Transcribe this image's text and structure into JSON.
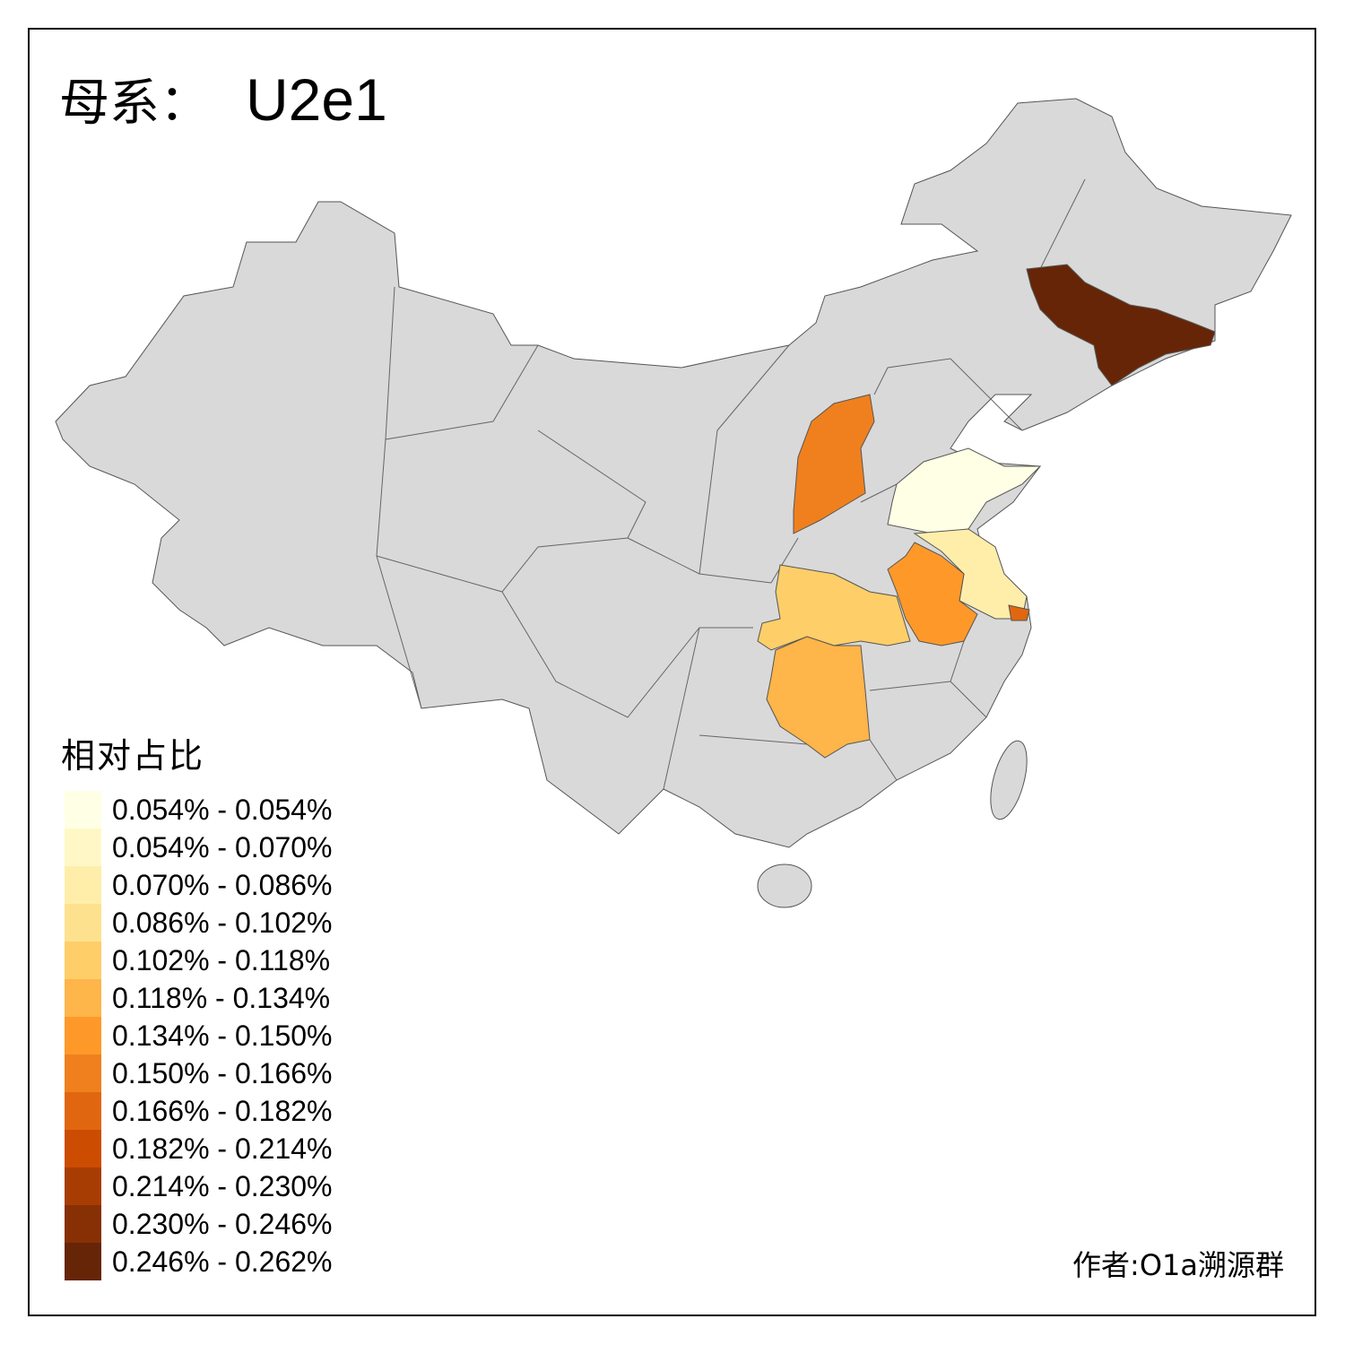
{
  "title": {
    "prefix": "母系：",
    "haplogroup": "U2e1"
  },
  "legend": {
    "title": "相对占比",
    "items": [
      {
        "label": "0.054% - 0.054%",
        "color": "#FFFFE5"
      },
      {
        "label": "0.054% - 0.070%",
        "color": "#FFF8C6"
      },
      {
        "label": "0.070% - 0.086%",
        "color": "#FEEEAA"
      },
      {
        "label": "0.086% - 0.102%",
        "color": "#FEE18E"
      },
      {
        "label": "0.102% - 0.118%",
        "color": "#FECE69"
      },
      {
        "label": "0.118% - 0.134%",
        "color": "#FEB54A"
      },
      {
        "label": "0.134% - 0.150%",
        "color": "#FE9929"
      },
      {
        "label": "0.150% - 0.166%",
        "color": "#F0801E"
      },
      {
        "label": "0.166% - 0.182%",
        "color": "#E0670F"
      },
      {
        "label": "0.182% - 0.214%",
        "color": "#CC4C02"
      },
      {
        "label": "0.214% - 0.230%",
        "color": "#A83D04"
      },
      {
        "label": "0.230% - 0.246%",
        "color": "#872F05"
      },
      {
        "label": "0.246% - 0.262%",
        "color": "#662506"
      }
    ]
  },
  "map": {
    "base_fill": "#D9D9D9",
    "border_color": "#555555",
    "highlighted_regions": [
      {
        "id": "jilin",
        "bin": 12
      },
      {
        "id": "shanxi",
        "bin": 7
      },
      {
        "id": "shandong",
        "bin": 0
      },
      {
        "id": "jiangsu",
        "bin": 2
      },
      {
        "id": "shanghai",
        "bin": 8
      },
      {
        "id": "anhui",
        "bin": 6
      },
      {
        "id": "hubei",
        "bin": 4
      },
      {
        "id": "hunan",
        "bin": 5
      }
    ]
  },
  "author": "作者:O1a溯源群"
}
